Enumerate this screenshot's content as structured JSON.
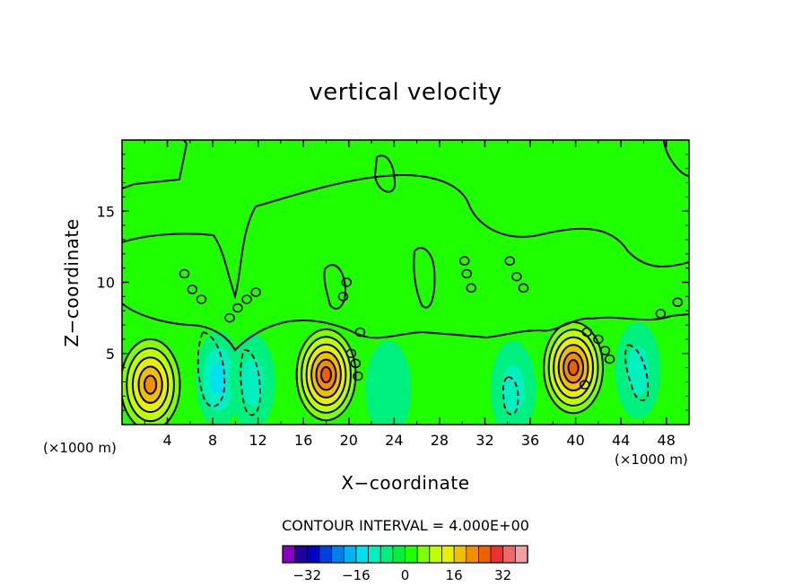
{
  "chart_data": {
    "type": "heatmap",
    "title": "vertical velocity",
    "xlabel": "X−coordinate",
    "ylabel": "Z−coordinate",
    "x_unit_label": "(×1000 m)",
    "xlim": [
      0,
      50
    ],
    "ylim": [
      0,
      20
    ],
    "x_ticks": [
      4,
      8,
      12,
      16,
      20,
      24,
      28,
      32,
      36,
      40,
      44,
      48
    ],
    "y_ticks": [
      5,
      10,
      15
    ],
    "contour_interval_text": "CONTOUR INTERVAL =  4.000E+00",
    "colorbar": {
      "levels": [
        -36,
        -32,
        -28,
        -24,
        -20,
        -16,
        -12,
        -8,
        -4,
        0,
        4,
        8,
        12,
        16,
        20,
        24,
        28,
        32,
        36
      ],
      "tick_labels": [
        "−32",
        "−16",
        "0",
        "16",
        "32"
      ],
      "tick_values": [
        -32,
        -16,
        0,
        16,
        32
      ],
      "colors": [
        "#8800c0",
        "#2000a0",
        "#0000c8",
        "#0040e0",
        "#0080e8",
        "#00b4f0",
        "#00e0f0",
        "#00f0c0",
        "#00f080",
        "#00f040",
        "#20ff00",
        "#80ff00",
        "#c0ff00",
        "#e8f000",
        "#f0c000",
        "#f09000",
        "#f06000",
        "#f03030",
        "#f06868",
        "#f0a0a0"
      ]
    },
    "features": [
      {
        "x": 2.5,
        "z": 2.8,
        "value": 20,
        "kind": "updraft"
      },
      {
        "x": 8.5,
        "z": 3.2,
        "value": -10,
        "kind": "downdraft"
      },
      {
        "x": 11.5,
        "z": 3.0,
        "value": -6,
        "kind": "downdraft"
      },
      {
        "x": 18.0,
        "z": 3.5,
        "value": 22,
        "kind": "updraft"
      },
      {
        "x": 23.5,
        "z": 2.5,
        "value": -3,
        "kind": "downdraft"
      },
      {
        "x": 34.5,
        "z": 2.5,
        "value": -6,
        "kind": "downdraft"
      },
      {
        "x": 39.8,
        "z": 4.0,
        "value": 22,
        "kind": "updraft"
      },
      {
        "x": 45.5,
        "z": 3.8,
        "value": -9,
        "kind": "downdraft"
      }
    ]
  }
}
